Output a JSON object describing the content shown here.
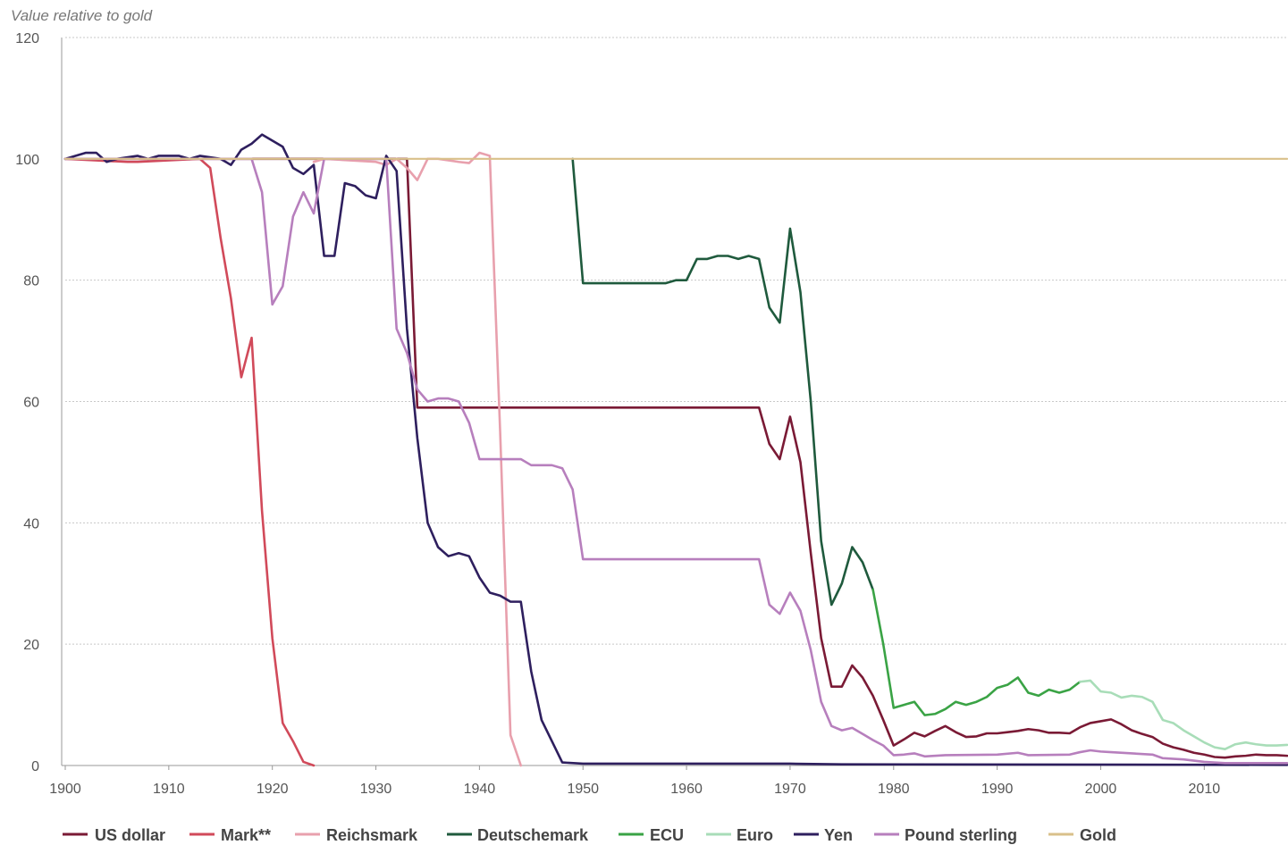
{
  "chart_data": {
    "type": "line",
    "title": "",
    "ylabel": "Value relative to gold",
    "xlabel": "",
    "xlim": [
      1900,
      2018
    ],
    "ylim": [
      0,
      120
    ],
    "grid": true,
    "legend_position": "bottom",
    "xticks": [
      "1900",
      "1910",
      "1920",
      "1930",
      "1940",
      "1950",
      "1960",
      "1970",
      "1980",
      "1990",
      "2000",
      "2010"
    ],
    "yticks": [
      "0",
      "20",
      "40",
      "60",
      "80",
      "100",
      "120"
    ],
    "series": [
      {
        "name": "US dollar",
        "color": "#7a1a35",
        "points": [
          [
            1900,
            100
          ],
          [
            1933,
            100
          ],
          [
            1934,
            59
          ],
          [
            1967,
            59
          ],
          [
            1968,
            53
          ],
          [
            1969,
            50.5
          ],
          [
            1970,
            57.5
          ],
          [
            1971,
            50
          ],
          [
            1972,
            35
          ],
          [
            1973,
            21
          ],
          [
            1974,
            13
          ],
          [
            1975,
            13
          ],
          [
            1976,
            16.5
          ],
          [
            1977,
            14.5
          ],
          [
            1978,
            11.5
          ],
          [
            1979,
            7.5
          ],
          [
            1980,
            3.3
          ],
          [
            1981,
            4.3
          ],
          [
            1982,
            5.4
          ],
          [
            1983,
            4.8
          ],
          [
            1984,
            5.7
          ],
          [
            1985,
            6.5
          ],
          [
            1986,
            5.5
          ],
          [
            1987,
            4.7
          ],
          [
            1988,
            4.8
          ],
          [
            1989,
            5.3
          ],
          [
            1990,
            5.3
          ],
          [
            1991,
            5.5
          ],
          [
            1992,
            5.7
          ],
          [
            1993,
            6
          ],
          [
            1994,
            5.8
          ],
          [
            1995,
            5.4
          ],
          [
            1996,
            5.4
          ],
          [
            1997,
            5.3
          ],
          [
            1998,
            6.3
          ],
          [
            1999,
            7
          ],
          [
            2000,
            7.3
          ],
          [
            2001,
            7.6
          ],
          [
            2002,
            6.8
          ],
          [
            2003,
            5.8
          ],
          [
            2004,
            5.2
          ],
          [
            2005,
            4.7
          ],
          [
            2006,
            3.6
          ],
          [
            2007,
            3
          ],
          [
            2008,
            2.6
          ],
          [
            2009,
            2.1
          ],
          [
            2010,
            1.8
          ],
          [
            2011,
            1.4
          ],
          [
            2012,
            1.3
          ],
          [
            2013,
            1.5
          ],
          [
            2014,
            1.6
          ],
          [
            2015,
            1.8
          ],
          [
            2016,
            1.7
          ],
          [
            2017,
            1.7
          ],
          [
            2018,
            1.6
          ]
        ]
      },
      {
        "name": "Mark**",
        "color": "#d14a5a",
        "points": [
          [
            1900,
            100
          ],
          [
            1906,
            99.5
          ],
          [
            1907,
            99.5
          ],
          [
            1913,
            100
          ],
          [
            1914,
            98.5
          ],
          [
            1915,
            87
          ],
          [
            1916,
            77
          ],
          [
            1917,
            64
          ],
          [
            1918,
            70.5
          ],
          [
            1919,
            42
          ],
          [
            1920,
            21
          ],
          [
            1921,
            7
          ],
          [
            1922,
            4
          ],
          [
            1923,
            0.6
          ],
          [
            1924,
            0
          ]
        ]
      },
      {
        "name": "Reichsmark",
        "color": "#e8a0ad",
        "points": [
          [
            1924,
            99.5
          ],
          [
            1925,
            100
          ],
          [
            1930,
            99.5
          ],
          [
            1931,
            99
          ],
          [
            1932,
            100
          ],
          [
            1933,
            98.5
          ],
          [
            1934,
            96.5
          ],
          [
            1935,
            100
          ],
          [
            1936,
            100
          ],
          [
            1938,
            99.5
          ],
          [
            1939,
            99.3
          ],
          [
            1940,
            101
          ],
          [
            1941,
            100.5
          ],
          [
            1942,
            55
          ],
          [
            1943,
            5
          ],
          [
            1944,
            0
          ]
        ]
      },
      {
        "name": "Deutschemark",
        "color": "#1f5a3d",
        "points": [
          [
            1949,
            100
          ],
          [
            1950,
            79.5
          ],
          [
            1958,
            79.5
          ],
          [
            1959,
            80
          ],
          [
            1960,
            80
          ],
          [
            1961,
            83.5
          ],
          [
            1962,
            83.5
          ],
          [
            1963,
            84
          ],
          [
            1964,
            84
          ],
          [
            1965,
            83.5
          ],
          [
            1966,
            84
          ],
          [
            1967,
            83.5
          ],
          [
            1968,
            75.5
          ],
          [
            1969,
            73
          ],
          [
            1970,
            88.5
          ],
          [
            1971,
            78
          ],
          [
            1972,
            60
          ],
          [
            1973,
            37
          ],
          [
            1974,
            26.5
          ],
          [
            1975,
            30
          ],
          [
            1976,
            36
          ],
          [
            1977,
            33.5
          ],
          [
            1978,
            29
          ]
        ]
      },
      {
        "name": "ECU",
        "color": "#3aa345",
        "points": [
          [
            1978,
            29
          ],
          [
            1979,
            20
          ],
          [
            1980,
            9.5
          ],
          [
            1981,
            10
          ],
          [
            1982,
            10.5
          ],
          [
            1983,
            8.3
          ],
          [
            1984,
            8.5
          ],
          [
            1985,
            9.3
          ],
          [
            1986,
            10.5
          ],
          [
            1987,
            10
          ],
          [
            1988,
            10.5
          ],
          [
            1989,
            11.3
          ],
          [
            1990,
            12.8
          ],
          [
            1991,
            13.3
          ],
          [
            1992,
            14.5
          ],
          [
            1993,
            12
          ],
          [
            1994,
            11.5
          ],
          [
            1995,
            12.5
          ],
          [
            1996,
            12
          ],
          [
            1997,
            12.5
          ],
          [
            1998,
            13.8
          ]
        ]
      },
      {
        "name": "Euro",
        "color": "#a8ddb8",
        "points": [
          [
            1998,
            13.8
          ],
          [
            1999,
            14
          ],
          [
            2000,
            12.2
          ],
          [
            2001,
            12
          ],
          [
            2002,
            11.2
          ],
          [
            2003,
            11.5
          ],
          [
            2004,
            11.3
          ],
          [
            2005,
            10.5
          ],
          [
            2006,
            7.5
          ],
          [
            2007,
            7
          ],
          [
            2008,
            5.8
          ],
          [
            2009,
            4.8
          ],
          [
            2010,
            3.8
          ],
          [
            2011,
            3
          ],
          [
            2012,
            2.7
          ],
          [
            2013,
            3.5
          ],
          [
            2014,
            3.8
          ],
          [
            2015,
            3.5
          ],
          [
            2016,
            3.3
          ],
          [
            2017,
            3.3
          ],
          [
            2018,
            3.4
          ]
        ]
      },
      {
        "name": "Yen",
        "color": "#2e1f5e",
        "points": [
          [
            1900,
            100
          ],
          [
            1902,
            101
          ],
          [
            1903,
            101
          ],
          [
            1904,
            99.5
          ],
          [
            1905,
            100
          ],
          [
            1907,
            100.5
          ],
          [
            1908,
            100
          ],
          [
            1909,
            100.5
          ],
          [
            1911,
            100.5
          ],
          [
            1912,
            100
          ],
          [
            1913,
            100.5
          ],
          [
            1915,
            100
          ],
          [
            1916,
            99
          ],
          [
            1917,
            101.5
          ],
          [
            1918,
            102.5
          ],
          [
            1919,
            104
          ],
          [
            1921,
            102
          ],
          [
            1922,
            98.5
          ],
          [
            1923,
            97.5
          ],
          [
            1924,
            99
          ],
          [
            1925,
            84
          ],
          [
            1926,
            84
          ],
          [
            1927,
            96
          ],
          [
            1928,
            95.5
          ],
          [
            1929,
            94
          ],
          [
            1930,
            93.5
          ],
          [
            1931,
            100.5
          ],
          [
            1932,
            98
          ],
          [
            1933,
            72
          ],
          [
            1934,
            54
          ],
          [
            1935,
            40
          ],
          [
            1936,
            36
          ],
          [
            1937,
            34.5
          ],
          [
            1938,
            35
          ],
          [
            1939,
            34.5
          ],
          [
            1940,
            31
          ],
          [
            1941,
            28.5
          ],
          [
            1942,
            28
          ],
          [
            1943,
            27
          ],
          [
            1944,
            27
          ],
          [
            1945,
            15.5
          ],
          [
            1946,
            7.5
          ],
          [
            1947,
            4
          ],
          [
            1948,
            0.5
          ],
          [
            1950,
            0.3
          ],
          [
            1970,
            0.3
          ],
          [
            1975,
            0.2
          ],
          [
            2018,
            0.1
          ]
        ]
      },
      {
        "name": "Pound sterling",
        "color": "#b77fbd",
        "points": [
          [
            1900,
            100
          ],
          [
            1918,
            100
          ],
          [
            1919,
            94.5
          ],
          [
            1920,
            76
          ],
          [
            1921,
            79
          ],
          [
            1922,
            90.5
          ],
          [
            1923,
            94.5
          ],
          [
            1924,
            91
          ],
          [
            1925,
            100
          ],
          [
            1931,
            100
          ],
          [
            1932,
            72
          ],
          [
            1933,
            68
          ],
          [
            1934,
            62
          ],
          [
            1935,
            60
          ],
          [
            1936,
            60.5
          ],
          [
            1937,
            60.5
          ],
          [
            1938,
            60
          ],
          [
            1939,
            56.5
          ],
          [
            1940,
            50.5
          ],
          [
            1944,
            50.5
          ],
          [
            1945,
            49.5
          ],
          [
            1947,
            49.5
          ],
          [
            1948,
            49
          ],
          [
            1949,
            45.5
          ],
          [
            1950,
            34
          ],
          [
            1967,
            34
          ],
          [
            1968,
            26.5
          ],
          [
            1969,
            25
          ],
          [
            1970,
            28.5
          ],
          [
            1971,
            25.5
          ],
          [
            1972,
            19
          ],
          [
            1973,
            10.5
          ],
          [
            1974,
            6.5
          ],
          [
            1975,
            5.8
          ],
          [
            1976,
            6.2
          ],
          [
            1977,
            5.2
          ],
          [
            1978,
            4.2
          ],
          [
            1979,
            3.3
          ],
          [
            1980,
            1.7
          ],
          [
            1981,
            1.8
          ],
          [
            1982,
            2
          ],
          [
            1983,
            1.5
          ],
          [
            1985,
            1.7
          ],
          [
            1990,
            1.8
          ],
          [
            1992,
            2.1
          ],
          [
            1993,
            1.7
          ],
          [
            1997,
            1.8
          ],
          [
            1998,
            2.2
          ],
          [
            1999,
            2.5
          ],
          [
            2000,
            2.3
          ],
          [
            2001,
            2.2
          ],
          [
            2005,
            1.8
          ],
          [
            2006,
            1.2
          ],
          [
            2008,
            1
          ],
          [
            2010,
            0.6
          ],
          [
            2012,
            0.4
          ],
          [
            2018,
            0.4
          ]
        ]
      },
      {
        "name": "Gold",
        "color": "#d9c08a",
        "points": [
          [
            1900,
            100
          ],
          [
            2018,
            100
          ]
        ]
      }
    ]
  }
}
